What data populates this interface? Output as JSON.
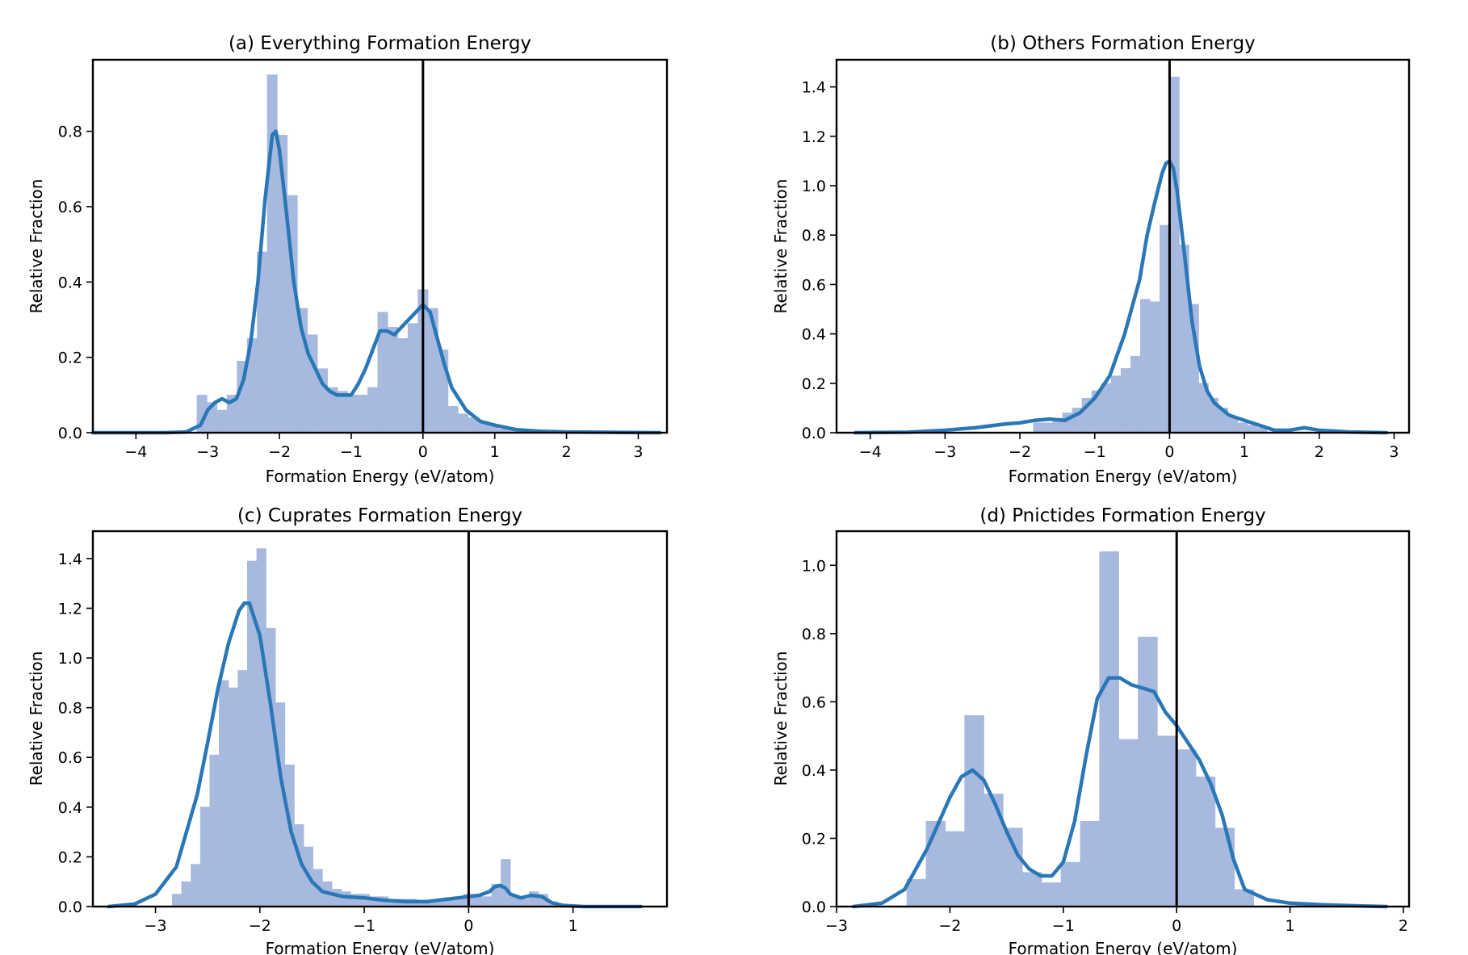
{
  "colors": {
    "bar": "#a7b9de",
    "kde": "#2a77b7",
    "axis": "#000000",
    "zero_line": "#000000"
  },
  "chart_data": [
    {
      "type": "bar",
      "title": "(a) Everything Formation Energy",
      "xlabel": "Formation Energy (eV/atom)",
      "ylabel": "Relative Fraction",
      "xlim": [
        -4.6,
        3.4
      ],
      "ylim": [
        0,
        0.99
      ],
      "xticks": [
        -4,
        -3,
        -2,
        -1,
        0,
        1,
        2,
        3
      ],
      "xtick_labels": [
        "−4",
        "−3",
        "−2",
        "−1",
        "0",
        "1",
        "2",
        "3"
      ],
      "yticks": [
        0.0,
        0.2,
        0.4,
        0.6,
        0.8
      ],
      "ytick_labels": [
        "0.0",
        "0.2",
        "0.4",
        "0.6",
        "0.8"
      ],
      "vline": 0,
      "bin_width": 0.14,
      "bins": [
        {
          "x": -3.08,
          "y": 0.1
        },
        {
          "x": -2.94,
          "y": 0.08
        },
        {
          "x": -2.8,
          "y": 0.06
        },
        {
          "x": -2.66,
          "y": 0.1
        },
        {
          "x": -2.52,
          "y": 0.19
        },
        {
          "x": -2.38,
          "y": 0.25
        },
        {
          "x": -2.24,
          "y": 0.48
        },
        {
          "x": -2.1,
          "y": 0.95
        },
        {
          "x": -1.96,
          "y": 0.79
        },
        {
          "x": -1.82,
          "y": 0.63
        },
        {
          "x": -1.68,
          "y": 0.33
        },
        {
          "x": -1.54,
          "y": 0.26
        },
        {
          "x": -1.4,
          "y": 0.17
        },
        {
          "x": -1.26,
          "y": 0.12
        },
        {
          "x": -1.12,
          "y": 0.11
        },
        {
          "x": -0.98,
          "y": 0.1
        },
        {
          "x": -0.84,
          "y": 0.1
        },
        {
          "x": -0.7,
          "y": 0.12
        },
        {
          "x": -0.56,
          "y": 0.32
        },
        {
          "x": -0.42,
          "y": 0.28
        },
        {
          "x": -0.28,
          "y": 0.25
        },
        {
          "x": -0.14,
          "y": 0.29
        },
        {
          "x": 0.0,
          "y": 0.38
        },
        {
          "x": 0.14,
          "y": 0.33
        },
        {
          "x": 0.28,
          "y": 0.22
        },
        {
          "x": 0.42,
          "y": 0.07
        },
        {
          "x": 0.56,
          "y": 0.05
        },
        {
          "x": 0.7,
          "y": 0.04
        },
        {
          "x": 0.84,
          "y": 0.03
        },
        {
          "x": 0.98,
          "y": 0.02
        },
        {
          "x": 1.12,
          "y": 0.01
        },
        {
          "x": 1.26,
          "y": 0.01
        }
      ],
      "kde": {
        "x": [
          -4.6,
          -3.6,
          -3.3,
          -3.1,
          -3.0,
          -2.9,
          -2.8,
          -2.7,
          -2.6,
          -2.5,
          -2.4,
          -2.3,
          -2.2,
          -2.1,
          -2.05,
          -2.0,
          -1.9,
          -1.8,
          -1.7,
          -1.6,
          -1.5,
          -1.4,
          -1.3,
          -1.2,
          -1.1,
          -1.0,
          -0.9,
          -0.8,
          -0.7,
          -0.6,
          -0.5,
          -0.4,
          -0.3,
          -0.2,
          -0.1,
          0.0,
          0.1,
          0.2,
          0.3,
          0.4,
          0.5,
          0.6,
          0.8,
          1.0,
          1.3,
          1.6,
          2.0,
          2.6,
          3.3
        ],
        "y": [
          0.0,
          0.0,
          0.002,
          0.02,
          0.06,
          0.08,
          0.09,
          0.08,
          0.09,
          0.14,
          0.24,
          0.4,
          0.62,
          0.79,
          0.8,
          0.75,
          0.58,
          0.4,
          0.28,
          0.21,
          0.17,
          0.13,
          0.11,
          0.1,
          0.1,
          0.1,
          0.13,
          0.17,
          0.22,
          0.27,
          0.27,
          0.26,
          0.28,
          0.3,
          0.32,
          0.34,
          0.32,
          0.25,
          0.18,
          0.12,
          0.09,
          0.06,
          0.03,
          0.02,
          0.008,
          0.004,
          0.002,
          0.001,
          0.0
        ]
      }
    },
    {
      "type": "bar",
      "title": "(b) Others Formation Energy",
      "xlabel": "Formation Energy (eV/atom)",
      "ylabel": "Relative Fraction",
      "xlim": [
        -4.45,
        3.2
      ],
      "ylim": [
        0,
        1.51
      ],
      "xticks": [
        -4,
        -3,
        -2,
        -1,
        0,
        1,
        2,
        3
      ],
      "xtick_labels": [
        "−4",
        "−3",
        "−2",
        "−1",
        "0",
        "1",
        "2",
        "3"
      ],
      "yticks": [
        0.0,
        0.2,
        0.4,
        0.6,
        0.8,
        1.0,
        1.2,
        1.4
      ],
      "ytick_labels": [
        "0.0",
        "0.2",
        "0.4",
        "0.6",
        "0.8",
        "1.0",
        "1.2",
        "1.4"
      ],
      "vline": 0,
      "bin_width": 0.13,
      "bins": [
        {
          "x": -1.755,
          "y": 0.04
        },
        {
          "x": -1.625,
          "y": 0.04
        },
        {
          "x": -1.495,
          "y": 0.05
        },
        {
          "x": -1.365,
          "y": 0.08
        },
        {
          "x": -1.235,
          "y": 0.1
        },
        {
          "x": -1.105,
          "y": 0.14
        },
        {
          "x": -0.975,
          "y": 0.17
        },
        {
          "x": -0.845,
          "y": 0.2
        },
        {
          "x": -0.715,
          "y": 0.23
        },
        {
          "x": -0.585,
          "y": 0.26
        },
        {
          "x": -0.455,
          "y": 0.31
        },
        {
          "x": -0.325,
          "y": 0.54
        },
        {
          "x": -0.195,
          "y": 0.53
        },
        {
          "x": -0.065,
          "y": 0.84
        },
        {
          "x": 0.065,
          "y": 1.44
        },
        {
          "x": 0.195,
          "y": 0.76
        },
        {
          "x": 0.325,
          "y": 0.52
        },
        {
          "x": 0.455,
          "y": 0.2
        },
        {
          "x": 0.585,
          "y": 0.14
        },
        {
          "x": 0.715,
          "y": 0.1
        },
        {
          "x": 0.845,
          "y": 0.06
        },
        {
          "x": 0.975,
          "y": 0.04
        },
        {
          "x": 1.105,
          "y": 0.03
        },
        {
          "x": 1.235,
          "y": 0.02
        }
      ],
      "kde": {
        "x": [
          -4.2,
          -3.5,
          -3.0,
          -2.6,
          -2.2,
          -2.0,
          -1.8,
          -1.6,
          -1.4,
          -1.2,
          -1.0,
          -0.8,
          -0.6,
          -0.4,
          -0.3,
          -0.2,
          -0.1,
          -0.05,
          0.0,
          0.05,
          0.1,
          0.2,
          0.3,
          0.4,
          0.5,
          0.6,
          0.8,
          1.0,
          1.2,
          1.4,
          1.6,
          1.8,
          2.0,
          2.4,
          2.9
        ],
        "y": [
          0.0,
          0.002,
          0.01,
          0.02,
          0.035,
          0.04,
          0.05,
          0.055,
          0.05,
          0.08,
          0.14,
          0.23,
          0.4,
          0.62,
          0.8,
          0.93,
          1.05,
          1.09,
          1.1,
          1.07,
          0.98,
          0.72,
          0.45,
          0.27,
          0.17,
          0.12,
          0.07,
          0.05,
          0.03,
          0.01,
          0.01,
          0.02,
          0.01,
          0.003,
          0.0
        ]
      }
    },
    {
      "type": "bar",
      "title": "(c) Cuprates Formation Energy",
      "xlabel": "Formation Energy (eV/atom)",
      "ylabel": "Relative Fraction",
      "xlim": [
        -3.6,
        1.9
      ],
      "ylim": [
        0,
        1.51
      ],
      "xticks": [
        -3,
        -2,
        -1,
        0,
        1
      ],
      "xtick_labels": [
        "−3",
        "−2",
        "−1",
        "0",
        "1"
      ],
      "yticks": [
        0.0,
        0.2,
        0.4,
        0.6,
        0.8,
        1.0,
        1.2,
        1.4
      ],
      "ytick_labels": [
        "0.0",
        "0.2",
        "0.4",
        "0.6",
        "0.8",
        "1.0",
        "1.2",
        "1.4"
      ],
      "vline": 0,
      "bin_width": 0.09,
      "bins": [
        {
          "x": -2.795,
          "y": 0.05
        },
        {
          "x": -2.705,
          "y": 0.1
        },
        {
          "x": -2.615,
          "y": 0.17
        },
        {
          "x": -2.525,
          "y": 0.4
        },
        {
          "x": -2.435,
          "y": 0.61
        },
        {
          "x": -2.345,
          "y": 0.91
        },
        {
          "x": -2.255,
          "y": 0.88
        },
        {
          "x": -2.165,
          "y": 0.95
        },
        {
          "x": -2.075,
          "y": 1.39
        },
        {
          "x": -1.985,
          "y": 1.44
        },
        {
          "x": -1.895,
          "y": 1.12
        },
        {
          "x": -1.805,
          "y": 0.82
        },
        {
          "x": -1.715,
          "y": 0.57
        },
        {
          "x": -1.625,
          "y": 0.33
        },
        {
          "x": -1.535,
          "y": 0.24
        },
        {
          "x": -1.445,
          "y": 0.15
        },
        {
          "x": -1.355,
          "y": 0.1
        },
        {
          "x": -1.265,
          "y": 0.07
        },
        {
          "x": -1.175,
          "y": 0.06
        },
        {
          "x": -1.085,
          "y": 0.05
        },
        {
          "x": -0.995,
          "y": 0.05
        },
        {
          "x": -0.905,
          "y": 0.04
        },
        {
          "x": -0.815,
          "y": 0.04
        },
        {
          "x": -0.725,
          "y": 0.03
        },
        {
          "x": -0.635,
          "y": 0.03
        },
        {
          "x": -0.545,
          "y": 0.03
        },
        {
          "x": -0.455,
          "y": 0.02
        },
        {
          "x": -0.365,
          "y": 0.02
        },
        {
          "x": -0.275,
          "y": 0.02
        },
        {
          "x": -0.185,
          "y": 0.03
        },
        {
          "x": -0.095,
          "y": 0.04
        },
        {
          "x": -0.005,
          "y": 0.05
        },
        {
          "x": 0.085,
          "y": 0.05
        },
        {
          "x": 0.175,
          "y": 0.04
        },
        {
          "x": 0.265,
          "y": 0.09
        },
        {
          "x": 0.355,
          "y": 0.19
        },
        {
          "x": 0.445,
          "y": 0.04
        },
        {
          "x": 0.535,
          "y": 0.03
        },
        {
          "x": 0.625,
          "y": 0.06
        },
        {
          "x": 0.715,
          "y": 0.05
        },
        {
          "x": 0.805,
          "y": 0.02
        }
      ],
      "kde": {
        "x": [
          -3.45,
          -3.2,
          -3.0,
          -2.8,
          -2.6,
          -2.5,
          -2.4,
          -2.3,
          -2.2,
          -2.15,
          -2.1,
          -2.0,
          -1.9,
          -1.8,
          -1.7,
          -1.6,
          -1.5,
          -1.4,
          -1.2,
          -1.0,
          -0.8,
          -0.6,
          -0.4,
          -0.2,
          0.0,
          0.1,
          0.2,
          0.25,
          0.3,
          0.35,
          0.4,
          0.5,
          0.6,
          0.7,
          0.8,
          0.9,
          1.1,
          1.3,
          1.65
        ],
        "y": [
          0.0,
          0.01,
          0.05,
          0.16,
          0.45,
          0.66,
          0.88,
          1.06,
          1.19,
          1.22,
          1.22,
          1.09,
          0.82,
          0.52,
          0.3,
          0.17,
          0.1,
          0.06,
          0.04,
          0.035,
          0.025,
          0.02,
          0.02,
          0.03,
          0.04,
          0.045,
          0.06,
          0.08,
          0.085,
          0.075,
          0.05,
          0.035,
          0.045,
          0.04,
          0.015,
          0.005,
          0.0,
          0.0,
          0.0
        ]
      }
    },
    {
      "type": "bar",
      "title": "(d) Pnictides Formation Energy",
      "xlabel": "Formation Energy (eV/atom)",
      "ylabel": "Relative Fraction",
      "xlim": [
        -3.0,
        2.05
      ],
      "ylim": [
        0,
        1.1
      ],
      "xticks": [
        -3,
        -2,
        -1,
        0,
        1,
        2
      ],
      "xtick_labels": [
        "−3",
        "−2",
        "−1",
        "0",
        "1",
        "2"
      ],
      "yticks": [
        0.0,
        0.2,
        0.4,
        0.6,
        0.8,
        1.0
      ],
      "ytick_labels": [
        "0.0",
        "0.2",
        "0.4",
        "0.6",
        "0.8",
        "1.0"
      ],
      "vline": 0,
      "bin_width": 0.17,
      "bins": [
        {
          "x": -2.295,
          "y": 0.08
        },
        {
          "x": -2.125,
          "y": 0.25
        },
        {
          "x": -1.955,
          "y": 0.22
        },
        {
          "x": -1.785,
          "y": 0.56
        },
        {
          "x": -1.615,
          "y": 0.33
        },
        {
          "x": -1.445,
          "y": 0.23
        },
        {
          "x": -1.275,
          "y": 0.1
        },
        {
          "x": -1.105,
          "y": 0.07
        },
        {
          "x": -0.935,
          "y": 0.13
        },
        {
          "x": -0.765,
          "y": 0.25
        },
        {
          "x": -0.595,
          "y": 1.04
        },
        {
          "x": -0.425,
          "y": 0.49
        },
        {
          "x": -0.255,
          "y": 0.79
        },
        {
          "x": -0.085,
          "y": 0.5
        },
        {
          "x": 0.085,
          "y": 0.46
        },
        {
          "x": 0.255,
          "y": 0.38
        },
        {
          "x": 0.425,
          "y": 0.23
        },
        {
          "x": 0.595,
          "y": 0.05
        }
      ],
      "kde": {
        "x": [
          -2.85,
          -2.6,
          -2.4,
          -2.2,
          -2.0,
          -1.9,
          -1.8,
          -1.7,
          -1.6,
          -1.5,
          -1.4,
          -1.3,
          -1.2,
          -1.1,
          -1.0,
          -0.9,
          -0.8,
          -0.7,
          -0.6,
          -0.5,
          -0.45,
          -0.4,
          -0.3,
          -0.2,
          -0.1,
          0.0,
          0.1,
          0.2,
          0.3,
          0.4,
          0.5,
          0.6,
          0.8,
          1.0,
          1.3,
          1.6,
          1.85
        ],
        "y": [
          0.0,
          0.01,
          0.05,
          0.17,
          0.32,
          0.38,
          0.4,
          0.37,
          0.3,
          0.22,
          0.15,
          0.11,
          0.09,
          0.09,
          0.13,
          0.25,
          0.44,
          0.61,
          0.67,
          0.67,
          0.66,
          0.65,
          0.64,
          0.63,
          0.57,
          0.53,
          0.48,
          0.43,
          0.36,
          0.27,
          0.14,
          0.05,
          0.02,
          0.01,
          0.005,
          0.002,
          0.0
        ]
      }
    }
  ]
}
